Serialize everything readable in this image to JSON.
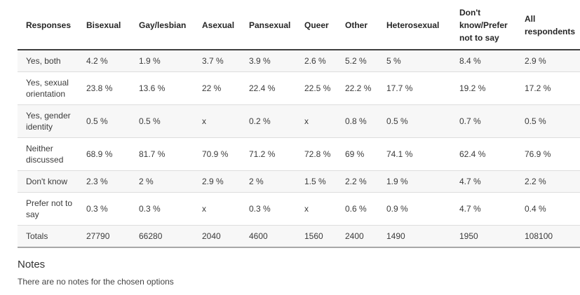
{
  "chart_data": {
    "type": "table",
    "title": "",
    "columns": [
      "Responses",
      "Bisexual",
      "Gay/lesbian",
      "Asexual",
      "Pansexual",
      "Queer",
      "Other",
      "Heterosexual",
      "Don't know/Prefer not to say",
      "All respondents"
    ],
    "rows": [
      {
        "label": "Yes, both",
        "values": [
          "4.2 %",
          "1.9 %",
          "3.7 %",
          "3.9 %",
          "2.6 %",
          "5.2 %",
          "5 %",
          "8.4 %",
          "2.9 %"
        ]
      },
      {
        "label": "Yes, sexual orientation",
        "values": [
          "23.8 %",
          "13.6 %",
          "22 %",
          "22.4 %",
          "22.5 %",
          "22.2 %",
          "17.7 %",
          "19.2 %",
          "17.2 %"
        ]
      },
      {
        "label": "Yes, gender identity",
        "values": [
          "0.5 %",
          "0.5 %",
          "x",
          "0.2 %",
          "x",
          "0.8 %",
          "0.5 %",
          "0.7 %",
          "0.5 %"
        ]
      },
      {
        "label": "Neither discussed",
        "values": [
          "68.9 %",
          "81.7 %",
          "70.9 %",
          "71.2 %",
          "72.8 %",
          "69 %",
          "74.1 %",
          "62.4 %",
          "76.9 %"
        ]
      },
      {
        "label": "Don't know",
        "values": [
          "2.3 %",
          "2 %",
          "2.9 %",
          "2 %",
          "1.5 %",
          "2.2 %",
          "1.9 %",
          "4.7 %",
          "2.2 %"
        ]
      },
      {
        "label": "Prefer not to say",
        "values": [
          "0.3 %",
          "0.3 %",
          "x",
          "0.3 %",
          "x",
          "0.6 %",
          "0.9 %",
          "4.7 %",
          "0.4 %"
        ]
      },
      {
        "label": "Totals",
        "values": [
          "27790",
          "66280",
          "2040",
          "4600",
          "1560",
          "2400",
          "1490",
          "1950",
          "108100"
        ]
      }
    ],
    "layout_hints": {
      "stripe_rows": "odd",
      "grid": "horizontal-lines-only"
    }
  },
  "notes": {
    "heading": "Notes",
    "body": "There are no notes for the chosen options"
  },
  "colors": {
    "header_border": "#3f3f3f",
    "row_separator": "#dddddd",
    "stripe_bg": "#f7f7f7",
    "bottom_border": "#a8a8a8",
    "text": "#3b3b3b",
    "header_text": "#262626",
    "page_bg": "#ffffff"
  }
}
